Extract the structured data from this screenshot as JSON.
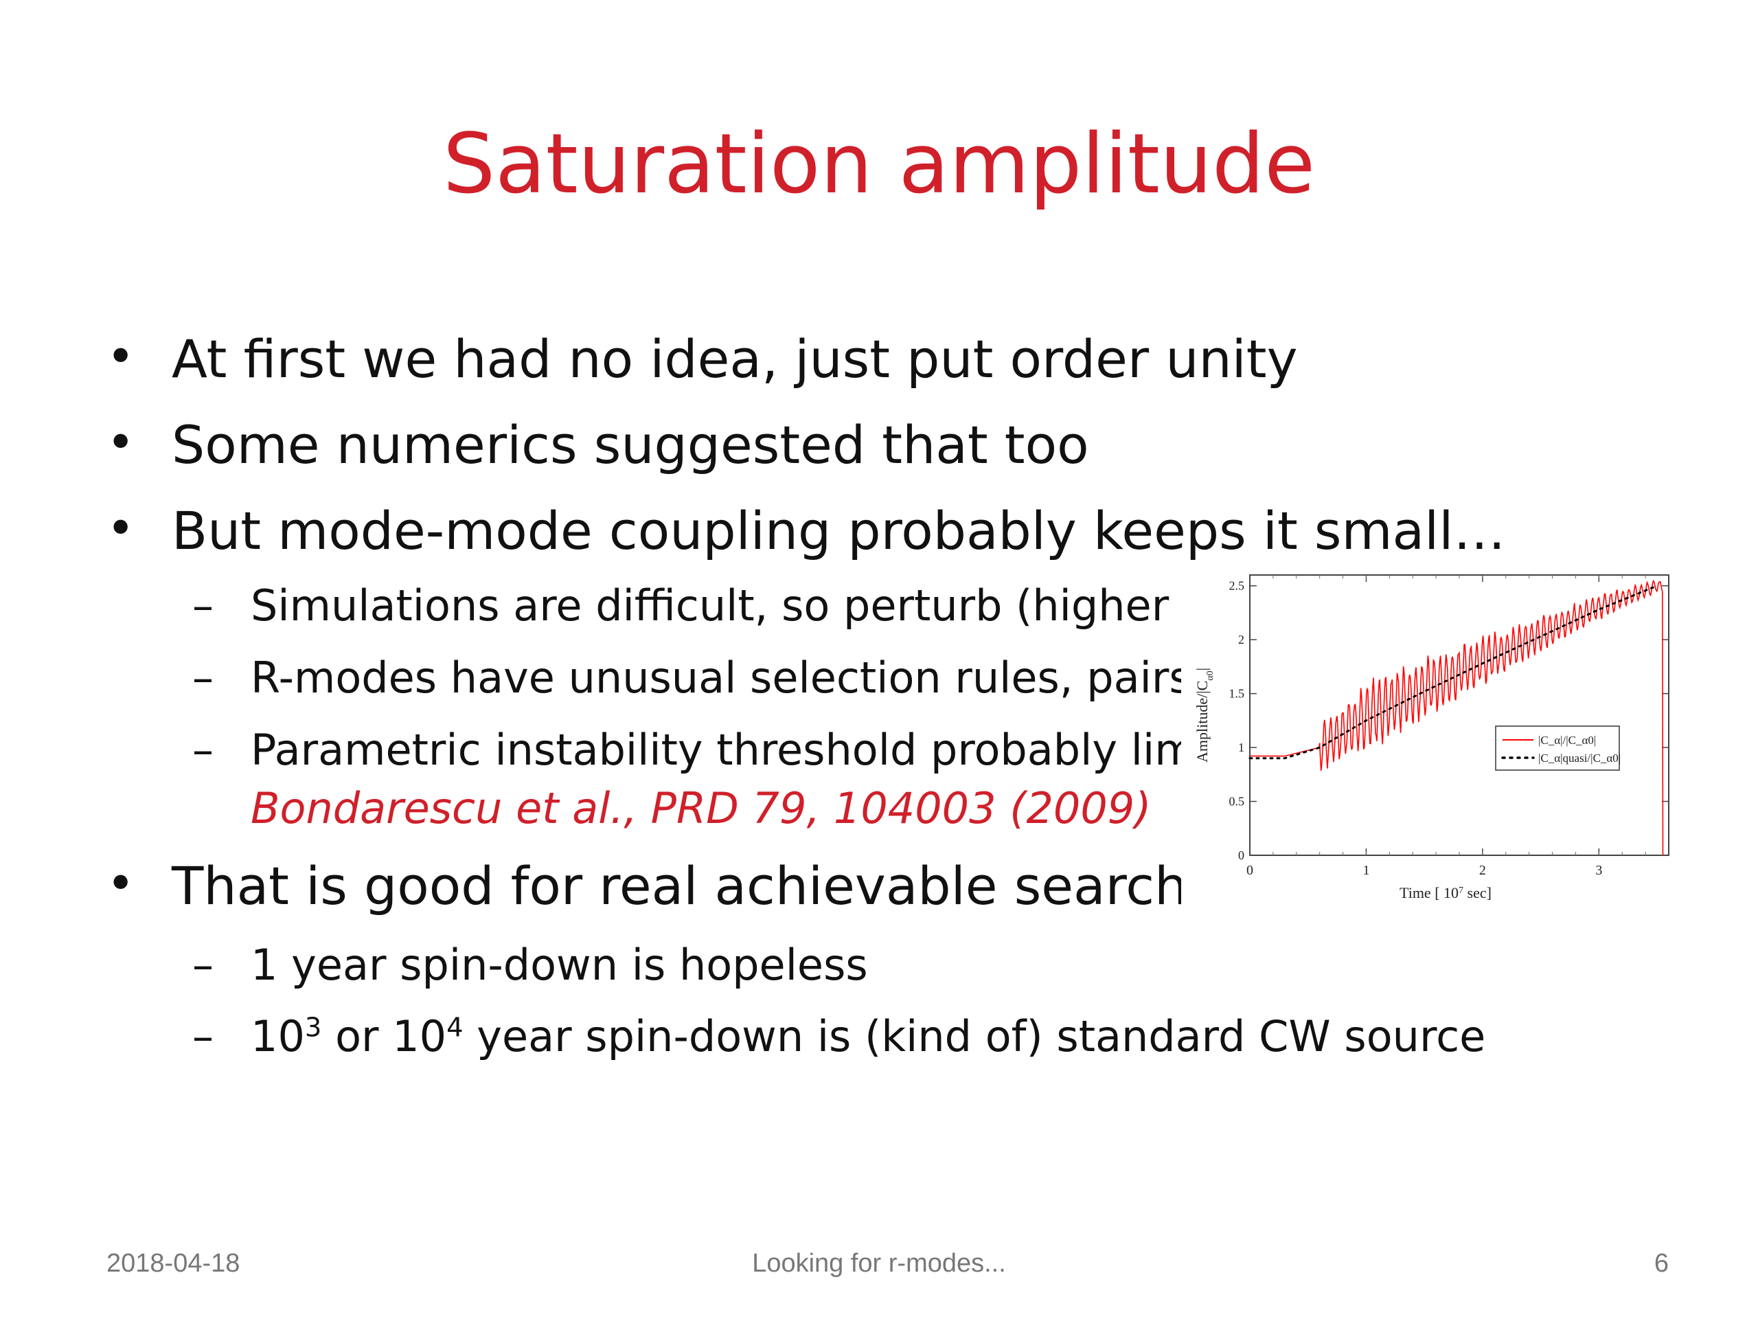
{
  "slide": {
    "title": "Saturation amplitude",
    "footer_date": "2018-04-18",
    "footer_title": "Looking for r-modes...",
    "footer_page": "6"
  },
  "bullets": [
    "At first we had no idea, just put order unity",
    "Some numerics suggested that too",
    "But mode-mode coupling probably keeps it small…",
    "That is good for real achievable searches!"
  ],
  "subbullets": {
    "s1": "Simulations are difficult, so perturb (higher ord",
    "s2": "R-modes have unusual selection rules, pairs of",
    "s3": "Parametric instability threshold probably limits",
    "s3_ref": "Bondarescu et al., PRD 79, 104003 (2009)",
    "s4": "1 year spin-down is hopeless",
    "s5_a": "10",
    "s5_a_exp": "3",
    "s5_b": " or 10",
    "s5_b_exp": "4",
    "s5_c": " year spin-down is (kind of) standard CW source"
  },
  "chart_data": {
    "type": "line",
    "xlabel": "Time [ 10",
    "xlabel_exp": "7",
    "xlabel_tail": " sec]",
    "ylabel": "Amplitude/|C",
    "ylabel_sub": "α0",
    "ylabel_tail": "|",
    "xlim": [
      0,
      3.6
    ],
    "ylim": [
      0,
      2.6
    ],
    "xticks": [
      "0",
      "1",
      "2",
      "3"
    ],
    "yticks": [
      "0",
      "0.5",
      "1",
      "1.5",
      "2",
      "2.5"
    ],
    "legend_position": "right",
    "series": [
      {
        "name": "|C_α|/|C_α0|",
        "color": "#ff0000",
        "style": "solid",
        "x": [
          0,
          0.3,
          0.6,
          1.0,
          1.5,
          2.0,
          2.5,
          3.0,
          3.5,
          3.55
        ],
        "y": [
          0.92,
          0.92,
          1.0,
          1.28,
          1.55,
          1.8,
          2.05,
          2.3,
          2.5,
          2.5
        ]
      },
      {
        "name": "|C_α|quasi/|C_α0|",
        "color": "#000000",
        "style": "dotted",
        "x": [
          0,
          0.3,
          0.6,
          1.0,
          1.5,
          2.0,
          2.5,
          3.0,
          3.5
        ],
        "y": [
          0.9,
          0.9,
          1.0,
          1.25,
          1.52,
          1.78,
          2.03,
          2.28,
          2.5
        ]
      }
    ]
  }
}
